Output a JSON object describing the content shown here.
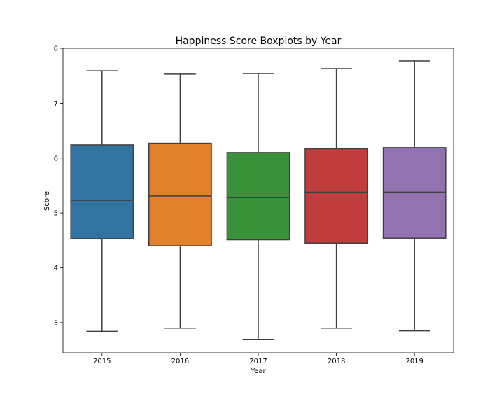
{
  "chart_data": {
    "type": "box",
    "title": "Happiness Score Boxplots by Year",
    "xlabel": "Year",
    "ylabel": "Score",
    "ylim": [
      2.45,
      8.0
    ],
    "yticks": [
      3,
      4,
      5,
      6,
      7,
      8
    ],
    "grid": false,
    "categories": [
      "2015",
      "2016",
      "2017",
      "2018",
      "2019"
    ],
    "boxes": [
      {
        "category": "2015",
        "min": 2.84,
        "q1": 4.53,
        "median": 5.23,
        "q3": 6.24,
        "max": 7.59,
        "color": "#3274a1"
      },
      {
        "category": "2016",
        "min": 2.9,
        "q1": 4.4,
        "median": 5.31,
        "q3": 6.27,
        "max": 7.53,
        "color": "#e1812c"
      },
      {
        "category": "2017",
        "min": 2.69,
        "q1": 4.51,
        "median": 5.28,
        "q3": 6.1,
        "max": 7.54,
        "color": "#3a923a"
      },
      {
        "category": "2018",
        "min": 2.9,
        "q1": 4.45,
        "median": 5.38,
        "q3": 6.17,
        "max": 7.63,
        "color": "#c03d3e"
      },
      {
        "category": "2019",
        "min": 2.85,
        "q1": 4.54,
        "median": 5.38,
        "q3": 6.19,
        "max": 7.77,
        "color": "#9372b2"
      }
    ]
  }
}
